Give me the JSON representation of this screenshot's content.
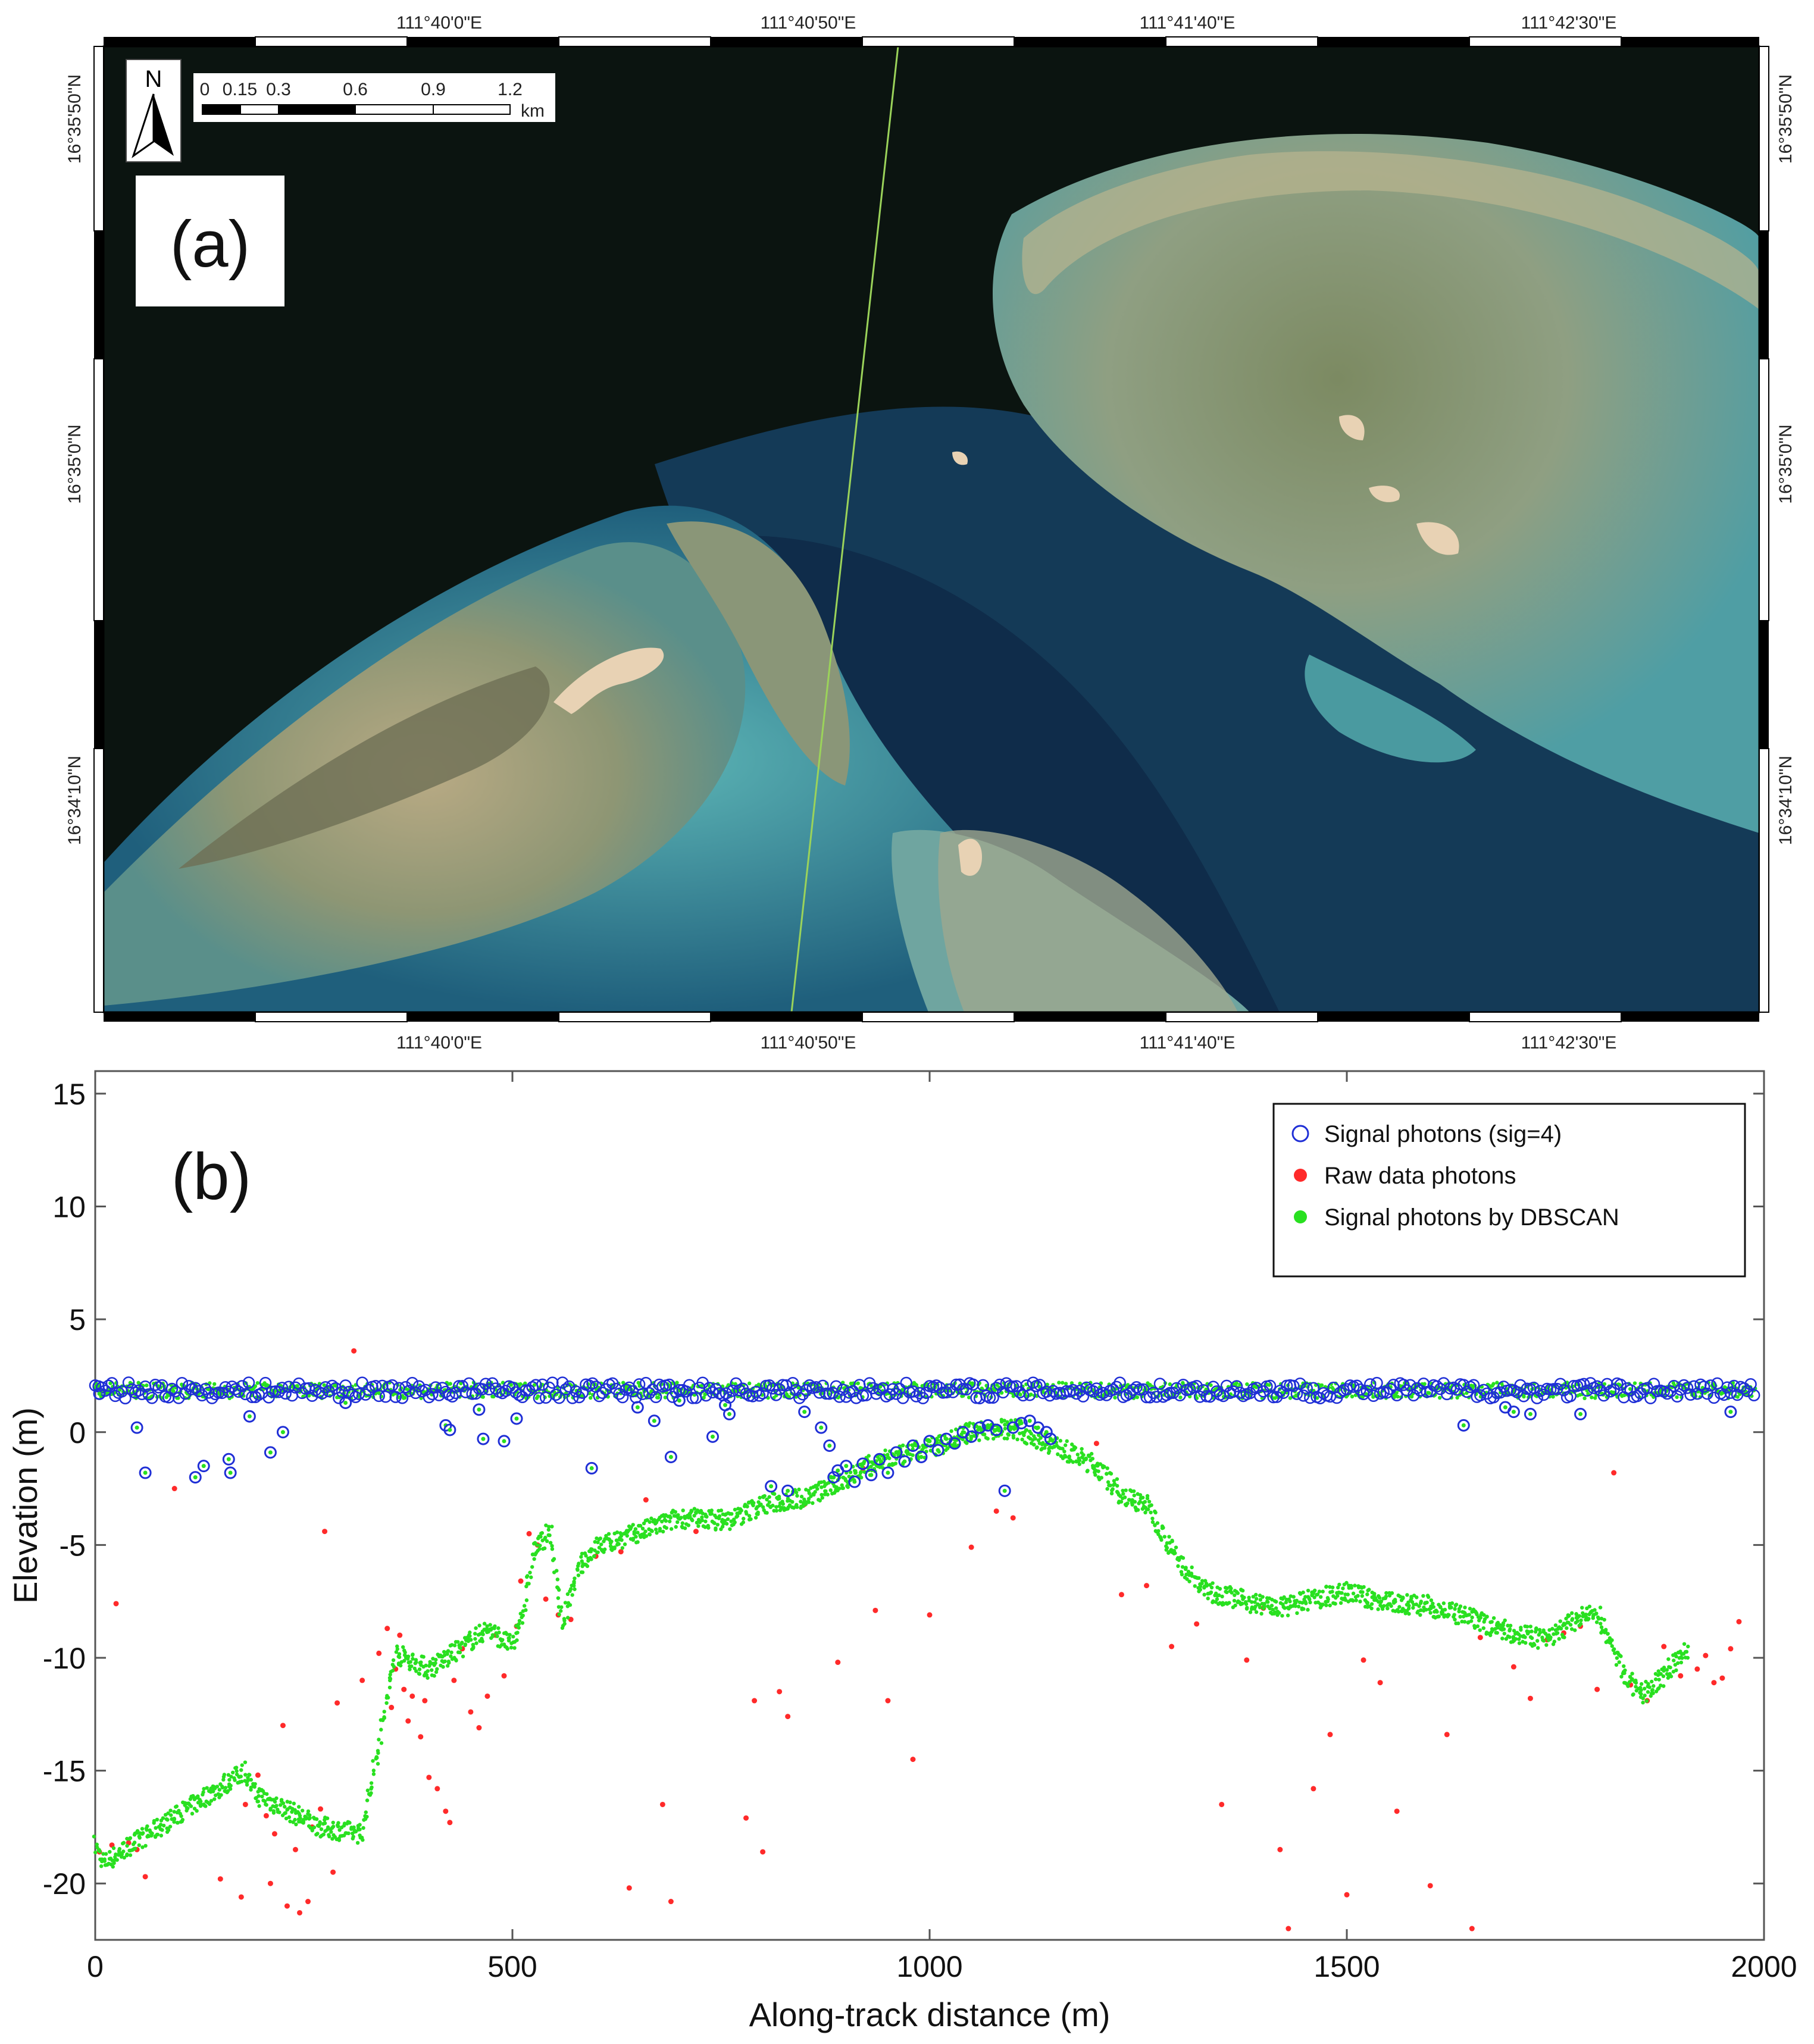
{
  "panel_a": {
    "label": "(a)",
    "top_lon_labels": [
      "111°40'0\"E",
      "111°40'50\"E",
      "111°41'40\"E",
      "111°42'30\"E"
    ],
    "bottom_lon_labels": [
      "111°40'0\"E",
      "111°40'50\"E",
      "111°41'40\"E",
      "111°42'30\"E"
    ],
    "left_lat_labels": [
      "16°35'50\"N",
      "16°35'0\"N",
      "16°34'10\"N"
    ],
    "right_lat_labels": [
      "16°35'50\"N",
      "16°35'0\"N",
      "16°34'10\"N"
    ],
    "north_arrow": "N",
    "scale_bar": {
      "ticks": [
        "0",
        "0.15",
        "0.3",
        "0.6",
        "0.9",
        "1.2"
      ],
      "unit": "km"
    },
    "colors": {
      "deep_water": "#0b1410",
      "lagoon": "#1d4a66",
      "shallow": "#3f9aa3",
      "reef_flat": "#8b9a7c",
      "sand": "#e8d2b4",
      "track": "#9bd35a"
    }
  },
  "chart_data": {
    "type": "scatter",
    "label": "(b)",
    "xlabel": "Along-track distance (m)",
    "ylabel": "Elevation (m)",
    "xlim": [
      0,
      2000
    ],
    "ylim": [
      -22.5,
      16
    ],
    "xticks": [
      "0",
      "500",
      "1000",
      "1500",
      "2000"
    ],
    "yticks": [
      "15",
      "10",
      "5",
      "0",
      "-5",
      "-10",
      "-15",
      "-20"
    ],
    "legend_position": "top-right",
    "grid": false,
    "series": [
      {
        "name": "Signal photons (sig=4)",
        "marker": "open-circle",
        "color": "#1f2fd6",
        "surface_band": {
          "x": [
            0,
            1990
          ],
          "y": [
            1.5,
            2.2
          ]
        },
        "points": [
          [
            5,
            1.7
          ],
          [
            50,
            0.2
          ],
          [
            60,
            -1.8
          ],
          [
            120,
            -2.0
          ],
          [
            130,
            -1.5
          ],
          [
            160,
            -1.2
          ],
          [
            162,
            -1.8
          ],
          [
            185,
            0.7
          ],
          [
            210,
            -0.9
          ],
          [
            225,
            0.0
          ],
          [
            300,
            1.3
          ],
          [
            420,
            0.3
          ],
          [
            425,
            0.1
          ],
          [
            460,
            1.0
          ],
          [
            465,
            -0.3
          ],
          [
            490,
            -0.4
          ],
          [
            505,
            0.6
          ],
          [
            595,
            -1.6
          ],
          [
            650,
            1.1
          ],
          [
            670,
            0.5
          ],
          [
            690,
            -1.1
          ],
          [
            700,
            1.4
          ],
          [
            740,
            -0.2
          ],
          [
            755,
            1.2
          ],
          [
            760,
            0.8
          ],
          [
            810,
            -2.4
          ],
          [
            830,
            -2.6
          ],
          [
            850,
            0.9
          ],
          [
            870,
            0.2
          ],
          [
            880,
            -0.6
          ],
          [
            885,
            -2.0
          ],
          [
            890,
            -1.7
          ],
          [
            900,
            -1.5
          ],
          [
            910,
            -2.2
          ],
          [
            920,
            -1.4
          ],
          [
            930,
            -1.9
          ],
          [
            940,
            -1.2
          ],
          [
            950,
            -1.8
          ],
          [
            960,
            -0.9
          ],
          [
            970,
            -1.3
          ],
          [
            980,
            -0.6
          ],
          [
            990,
            -1.1
          ],
          [
            1000,
            -0.4
          ],
          [
            1010,
            -0.8
          ],
          [
            1020,
            -0.3
          ],
          [
            1030,
            -0.5
          ],
          [
            1040,
            0.0
          ],
          [
            1050,
            -0.2
          ],
          [
            1060,
            0.2
          ],
          [
            1070,
            0.3
          ],
          [
            1080,
            0.1
          ],
          [
            1090,
            -2.6
          ],
          [
            1100,
            0.2
          ],
          [
            1110,
            0.4
          ],
          [
            1120,
            0.5
          ],
          [
            1130,
            0.2
          ],
          [
            1140,
            0.0
          ],
          [
            1145,
            -0.3
          ],
          [
            1640,
            0.3
          ],
          [
            1690,
            1.1
          ],
          [
            1700,
            0.9
          ],
          [
            1720,
            0.8
          ],
          [
            1780,
            0.8
          ],
          [
            1960,
            0.9
          ]
        ]
      },
      {
        "name": "Raw data photons",
        "marker": "dot",
        "color": "#ff2a2a",
        "points": [
          [
            5,
            -18.6
          ],
          [
            20,
            -18.3
          ],
          [
            25,
            -7.6
          ],
          [
            40,
            -18.2
          ],
          [
            50,
            -18.5
          ],
          [
            60,
            -19.7
          ],
          [
            95,
            -2.5
          ],
          [
            150,
            -19.8
          ],
          [
            175,
            -20.6
          ],
          [
            180,
            -16.5
          ],
          [
            195,
            -15.2
          ],
          [
            205,
            -17.0
          ],
          [
            210,
            -20.0
          ],
          [
            215,
            -17.8
          ],
          [
            225,
            -13.0
          ],
          [
            230,
            -21.0
          ],
          [
            240,
            -18.5
          ],
          [
            245,
            -21.3
          ],
          [
            255,
            -20.8
          ],
          [
            260,
            -17.5
          ],
          [
            270,
            -16.7
          ],
          [
            275,
            -4.4
          ],
          [
            285,
            -19.5
          ],
          [
            290,
            -12.0
          ],
          [
            310,
            3.6
          ],
          [
            320,
            -11.0
          ],
          [
            340,
            -9.8
          ],
          [
            350,
            -8.7
          ],
          [
            355,
            -12.2
          ],
          [
            360,
            -10.5
          ],
          [
            365,
            -9.0
          ],
          [
            370,
            -11.4
          ],
          [
            375,
            -12.8
          ],
          [
            380,
            -11.7
          ],
          [
            390,
            -13.5
          ],
          [
            395,
            -11.9
          ],
          [
            400,
            -15.3
          ],
          [
            410,
            -15.8
          ],
          [
            420,
            -16.8
          ],
          [
            425,
            -17.3
          ],
          [
            430,
            -11.0
          ],
          [
            440,
            -9.6
          ],
          [
            450,
            -12.4
          ],
          [
            460,
            -13.1
          ],
          [
            470,
            -11.7
          ],
          [
            480,
            -9.0
          ],
          [
            490,
            -10.8
          ],
          [
            505,
            -8.6
          ],
          [
            510,
            -6.6
          ],
          [
            520,
            -4.5
          ],
          [
            530,
            -5.0
          ],
          [
            540,
            -7.4
          ],
          [
            555,
            -8.1
          ],
          [
            570,
            -8.3
          ],
          [
            600,
            -5.5
          ],
          [
            630,
            -5.3
          ],
          [
            640,
            -20.2
          ],
          [
            660,
            -3.0
          ],
          [
            680,
            -16.5
          ],
          [
            690,
            -20.8
          ],
          [
            720,
            -4.4
          ],
          [
            780,
            -17.1
          ],
          [
            790,
            -11.9
          ],
          [
            800,
            -18.6
          ],
          [
            820,
            -11.5
          ],
          [
            830,
            -12.6
          ],
          [
            850,
            -3.2
          ],
          [
            890,
            -10.2
          ],
          [
            920,
            -1.6
          ],
          [
            935,
            -7.9
          ],
          [
            950,
            -11.9
          ],
          [
            980,
            -14.5
          ],
          [
            1000,
            -8.1
          ],
          [
            1050,
            -5.1
          ],
          [
            1080,
            -3.5
          ],
          [
            1100,
            -3.8
          ],
          [
            1200,
            -0.5
          ],
          [
            1230,
            -7.2
          ],
          [
            1260,
            -6.8
          ],
          [
            1290,
            -9.5
          ],
          [
            1320,
            -8.5
          ],
          [
            1350,
            -16.5
          ],
          [
            1380,
            -10.1
          ],
          [
            1400,
            -7.8
          ],
          [
            1420,
            -18.5
          ],
          [
            1430,
            -22.0
          ],
          [
            1460,
            -15.8
          ],
          [
            1480,
            -13.4
          ],
          [
            1500,
            -20.5
          ],
          [
            1520,
            -10.1
          ],
          [
            1540,
            -11.1
          ],
          [
            1560,
            -16.8
          ],
          [
            1600,
            -20.1
          ],
          [
            1620,
            -13.4
          ],
          [
            1650,
            -22.0
          ],
          [
            1660,
            -9.1
          ],
          [
            1700,
            -10.4
          ],
          [
            1720,
            -11.8
          ],
          [
            1740,
            -9.2
          ],
          [
            1760,
            -8.9
          ],
          [
            1780,
            -8.6
          ],
          [
            1800,
            -11.4
          ],
          [
            1820,
            -1.8
          ],
          [
            1840,
            -11.2
          ],
          [
            1860,
            -11.9
          ],
          [
            1880,
            -9.5
          ],
          [
            1900,
            -10.8
          ],
          [
            1920,
            -10.5
          ],
          [
            1930,
            -9.9
          ],
          [
            1940,
            -11.1
          ],
          [
            1950,
            -10.9
          ],
          [
            1960,
            -9.6
          ],
          [
            1970,
            -8.4
          ]
        ]
      },
      {
        "name": "Signal photons by DBSCAN",
        "marker": "dot",
        "color": "#29e020",
        "profile": [
          [
            0,
            -18.3
          ],
          [
            10,
            -19.1
          ],
          [
            180,
            -15.0
          ],
          [
            190,
            -16.0
          ],
          [
            270,
            -17.5
          ],
          [
            320,
            -17.8
          ],
          [
            360,
            -9.8
          ],
          [
            400,
            -10.5
          ],
          [
            430,
            -9.8
          ],
          [
            470,
            -8.7
          ],
          [
            500,
            -9.5
          ],
          [
            515,
            -7.6
          ],
          [
            525,
            -5.3
          ],
          [
            545,
            -4.4
          ],
          [
            560,
            -8.5
          ],
          [
            580,
            -6.0
          ],
          [
            600,
            -5.1
          ],
          [
            640,
            -4.6
          ],
          [
            700,
            -3.8
          ],
          [
            760,
            -3.9
          ],
          [
            800,
            -3.2
          ],
          [
            850,
            -2.9
          ],
          [
            890,
            -2.3
          ],
          [
            920,
            -1.6
          ],
          [
            960,
            -1.1
          ],
          [
            1000,
            -0.7
          ],
          [
            1050,
            0.0
          ],
          [
            1100,
            0.2
          ],
          [
            1150,
            -0.6
          ],
          [
            1200,
            -1.5
          ],
          [
            1230,
            -2.8
          ],
          [
            1260,
            -3.2
          ],
          [
            1280,
            -4.5
          ],
          [
            1300,
            -5.8
          ],
          [
            1330,
            -7.0
          ],
          [
            1380,
            -7.5
          ],
          [
            1420,
            -7.8
          ],
          [
            1460,
            -7.4
          ],
          [
            1500,
            -7.1
          ],
          [
            1540,
            -7.5
          ],
          [
            1600,
            -7.7
          ],
          [
            1650,
            -8.3
          ],
          [
            1700,
            -8.9
          ],
          [
            1740,
            -9.2
          ],
          [
            1770,
            -8.4
          ],
          [
            1800,
            -8.0
          ],
          [
            1830,
            -10.5
          ],
          [
            1850,
            -11.7
          ],
          [
            1870,
            -11.2
          ],
          [
            1890,
            -10.3
          ],
          [
            1910,
            -9.6
          ]
        ]
      }
    ]
  }
}
